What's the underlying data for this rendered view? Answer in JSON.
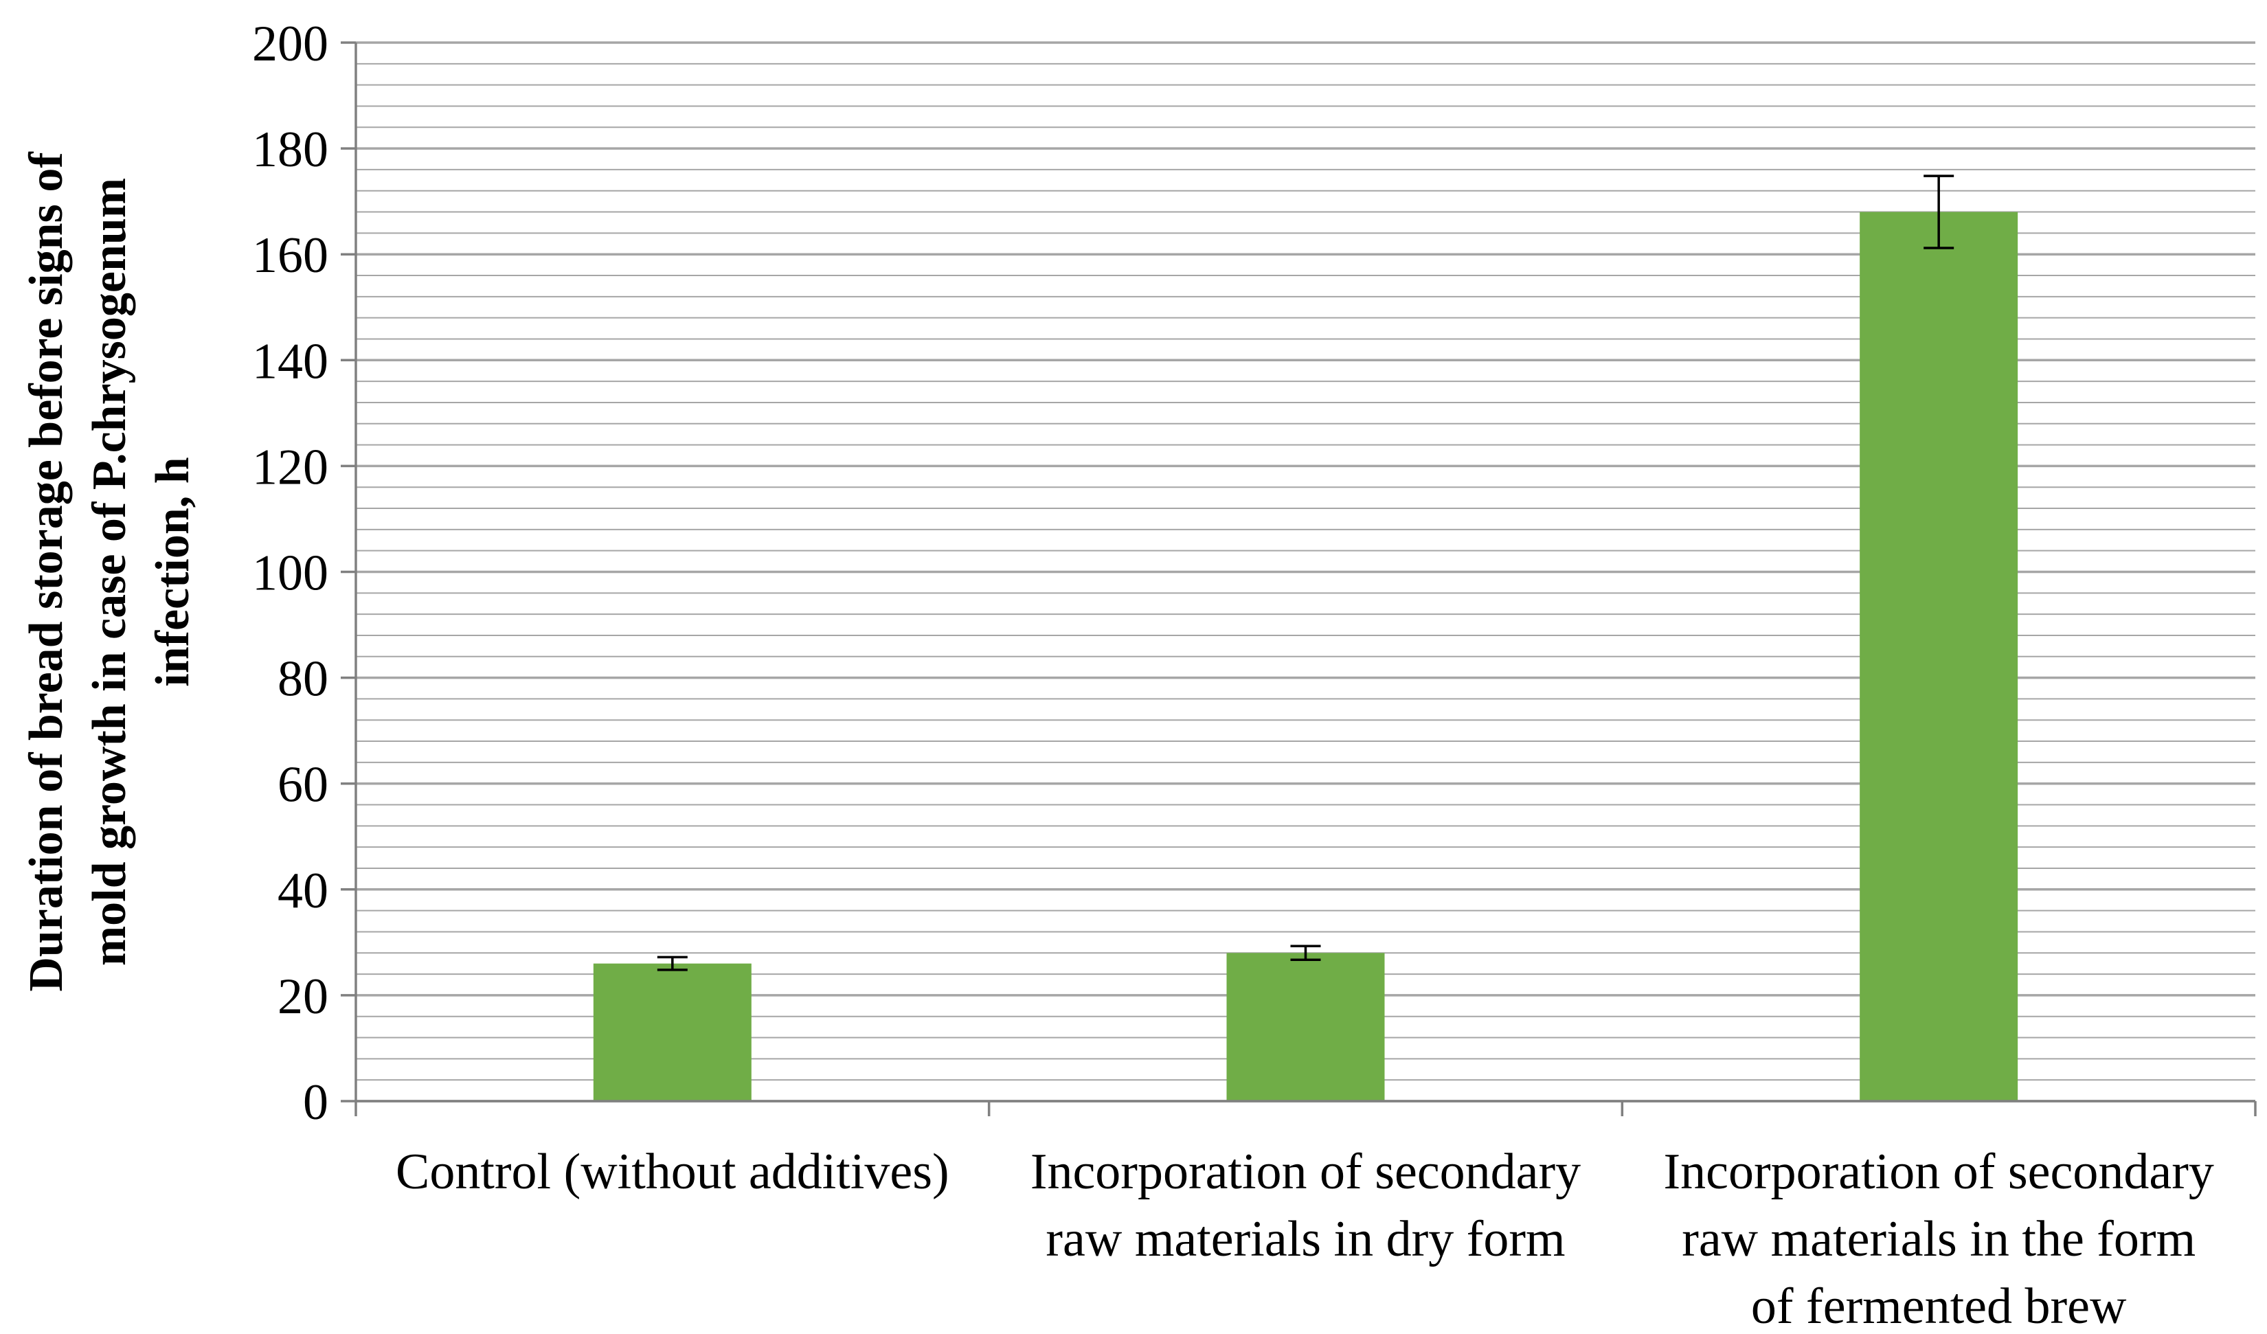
{
  "chart_data": {
    "type": "bar",
    "title": "",
    "xlabel": "",
    "ylabel_lines": [
      "Duration of bread storage before signs of",
      "mold growth in case of P.chrysogenum",
      "infection, h"
    ],
    "ylim": [
      0,
      200
    ],
    "major_ticks": [
      0,
      20,
      40,
      60,
      80,
      100,
      120,
      140,
      160,
      180,
      200
    ],
    "minor_step": 4,
    "grid": true,
    "categories": [
      {
        "lines": [
          "Control (without additives)"
        ]
      },
      {
        "lines": [
          "Incorporation of secondary",
          "raw materials in dry form"
        ]
      },
      {
        "lines": [
          "Incorporation of secondary",
          "raw materials in the form",
          "of fermented brew"
        ]
      }
    ],
    "values": [
      26,
      28,
      168
    ],
    "errors": [
      1.2,
      1.3,
      6.8
    ],
    "bar_color": "#70ad47",
    "grid_color": "#a6a6a6",
    "axis_color": "#808080"
  }
}
